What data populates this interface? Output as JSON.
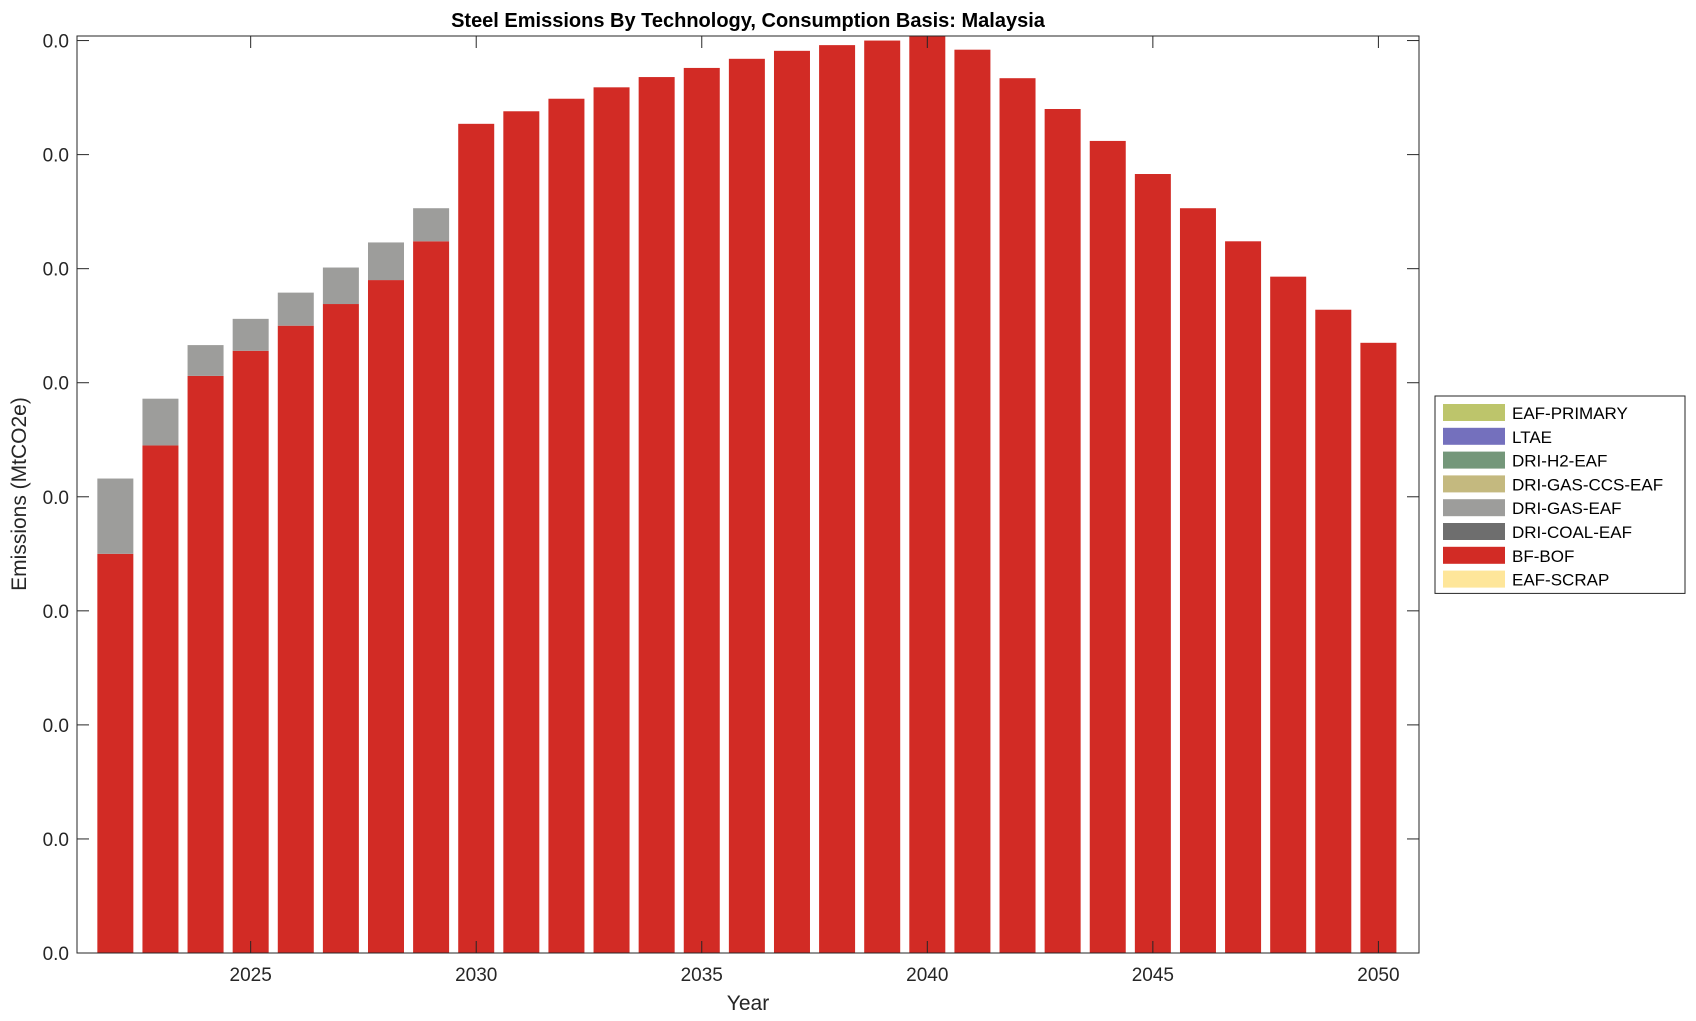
{
  "chart_data": {
    "type": "bar",
    "stacked": true,
    "title": "Steel Emissions By Technology, Consumption Basis: Malaysia",
    "xlabel": "Year",
    "ylabel": "Emissions (MtCO2e)",
    "x": [
      2022,
      2023,
      2024,
      2025,
      2026,
      2027,
      2028,
      2029,
      2030,
      2031,
      2032,
      2033,
      2034,
      2035,
      2036,
      2037,
      2038,
      2039,
      2040,
      2041,
      2042,
      2043,
      2044,
      2045,
      2046,
      2047,
      2048,
      2049,
      2050
    ],
    "xticks": [
      2025,
      2030,
      2035,
      2040,
      2045,
      2050
    ],
    "xtick_labels": [
      "2025",
      "2030",
      "2035",
      "2040",
      "2045",
      "2050"
    ],
    "ylim": [
      0,
      0.0804
    ],
    "yticks": [
      0,
      0.01,
      0.02,
      0.03,
      0.04,
      0.05,
      0.06,
      0.07,
      0.08
    ],
    "ytick_labels": [
      "0.0",
      "0.0",
      "0.0",
      "0.0",
      "0.0",
      "0.0",
      "0.0",
      "0.0",
      "0.0"
    ],
    "grid": false,
    "legend_placement": "right-outside",
    "series": [
      {
        "name": "EAF-SCRAP",
        "color": "#fee69a",
        "values": [
          0,
          0,
          0,
          0,
          0,
          0,
          0,
          0,
          0,
          0,
          0,
          0,
          0,
          0,
          0,
          0,
          0,
          0,
          0,
          0,
          0,
          0,
          0,
          0,
          0,
          0,
          0,
          0,
          0
        ]
      },
      {
        "name": "BF-BOF",
        "color": "#d22b25",
        "values": [
          0.035,
          0.0445,
          0.0506,
          0.0528,
          0.055,
          0.0569,
          0.059,
          0.0624,
          0.0727,
          0.0738,
          0.0749,
          0.0759,
          0.0768,
          0.0776,
          0.0784,
          0.0791,
          0.0796,
          0.08,
          0.0804,
          0.0792,
          0.0767,
          0.074,
          0.0712,
          0.0683,
          0.0653,
          0.0624,
          0.0593,
          0.0564,
          0.0535
        ]
      },
      {
        "name": "DRI-COAL-EAF",
        "color": "#6e6e6e",
        "values": [
          0,
          0,
          0,
          0,
          0,
          0,
          0,
          0,
          0,
          0,
          0,
          0,
          0,
          0,
          0,
          0,
          0,
          0,
          0,
          0,
          0,
          0,
          0,
          0,
          0,
          0,
          0,
          0,
          0
        ]
      },
      {
        "name": "DRI-GAS-EAF",
        "color": "#9d9d9b",
        "values": [
          0.0066,
          0.0041,
          0.0027,
          0.0028,
          0.0029,
          0.0032,
          0.0033,
          0.0029,
          0,
          0,
          0,
          0,
          0,
          0,
          0,
          0,
          0,
          0,
          0,
          0,
          0,
          0,
          0,
          0,
          0,
          0,
          0,
          0,
          0
        ]
      },
      {
        "name": "DRI-GAS-CCS-EAF",
        "color": "#c4b97f",
        "values": [
          0,
          0,
          0,
          0,
          0,
          0,
          0,
          0,
          0,
          0,
          0,
          0,
          0,
          0,
          0,
          0,
          0,
          0,
          0,
          0,
          0,
          0,
          0,
          0,
          0,
          0,
          0,
          0,
          0
        ]
      },
      {
        "name": "DRI-H2-EAF",
        "color": "#74977a",
        "values": [
          0,
          0,
          0,
          0,
          0,
          0,
          0,
          0,
          0,
          0,
          0,
          0,
          0,
          0,
          0,
          0,
          0,
          0,
          0,
          0,
          0,
          0,
          0,
          0,
          0,
          0,
          0,
          0,
          0
        ]
      },
      {
        "name": "LTAE",
        "color": "#7470bd",
        "values": [
          0,
          0,
          0,
          0,
          0,
          0,
          0,
          0,
          0,
          0,
          0,
          0,
          0,
          0,
          0,
          0,
          0,
          0,
          0,
          0,
          0,
          0,
          0,
          0,
          0,
          0,
          0,
          0,
          0
        ]
      },
      {
        "name": "EAF-PRIMARY",
        "color": "#bdc56b",
        "values": [
          0,
          0,
          0,
          0,
          0,
          0,
          0,
          0,
          0,
          0,
          0,
          0,
          0,
          0,
          0,
          0,
          0,
          0,
          0,
          0,
          0,
          0,
          0,
          0,
          0,
          0,
          0,
          0,
          0
        ]
      }
    ],
    "legend_order": [
      "EAF-PRIMARY",
      "LTAE",
      "DRI-H2-EAF",
      "DRI-GAS-CCS-EAF",
      "DRI-GAS-EAF",
      "DRI-COAL-EAF",
      "BF-BOF",
      "EAF-SCRAP"
    ]
  }
}
